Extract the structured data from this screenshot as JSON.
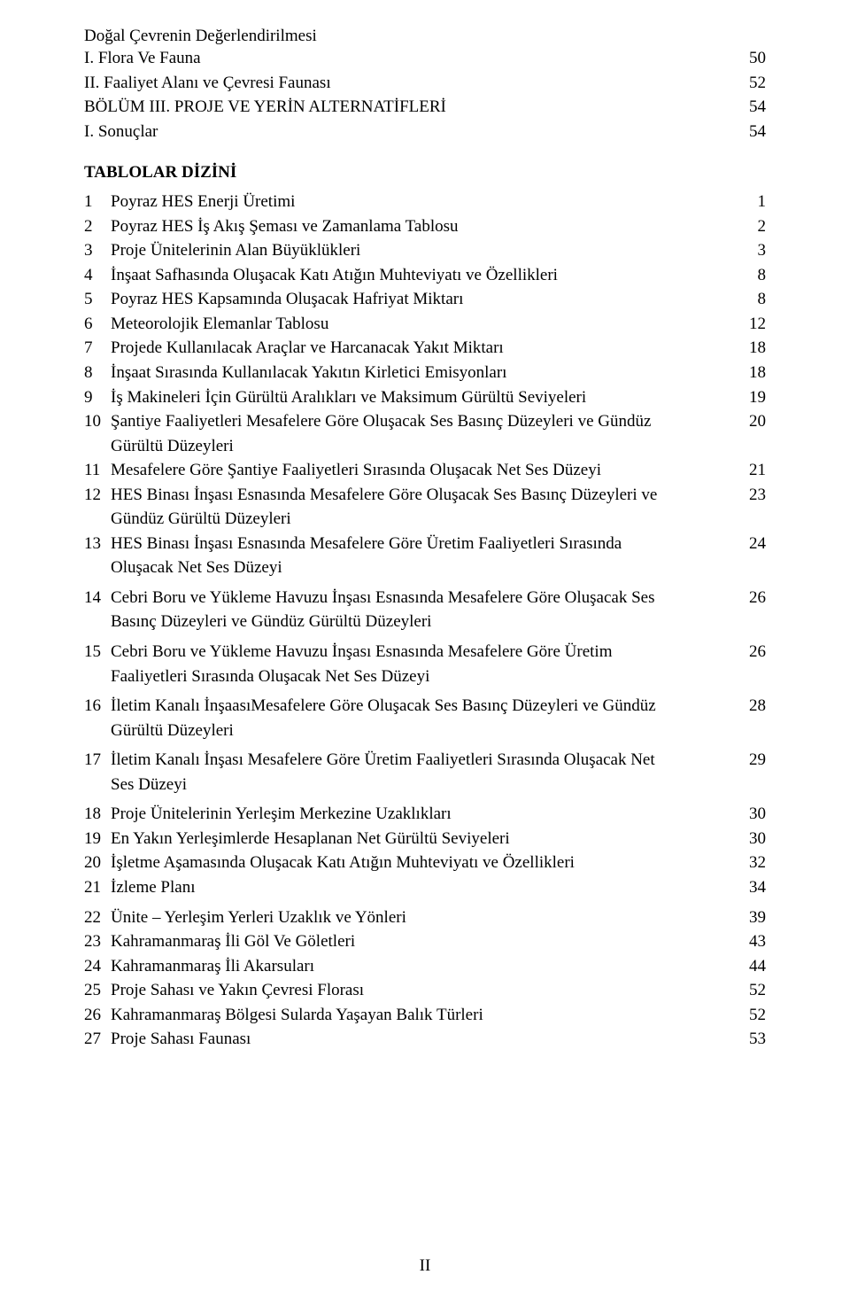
{
  "top": {
    "heading": "Doğal Çevrenin Değerlendirilmesi",
    "items": [
      {
        "label": "I. Flora Ve Fauna",
        "page": "50"
      },
      {
        "label": "II. Faaliyet Alanı ve Çevresi Faunası",
        "page": "52"
      }
    ],
    "bolum": {
      "label": "BÖLÜM III. PROJE VE YERİN ALTERNATİFLERİ",
      "page": "54"
    },
    "sonuclar": {
      "label": "I. Sonuçlar",
      "page": "54"
    }
  },
  "tablesHeading": "TABLOLAR DİZİNİ",
  "tables": [
    {
      "idx": "1",
      "desc": [
        "Poyraz HES Enerji Üretimi"
      ],
      "page": "1"
    },
    {
      "idx": "2",
      "desc": [
        "Poyraz HES İş Akış Şeması ve Zamanlama Tablosu"
      ],
      "page": "2"
    },
    {
      "idx": "3",
      "desc": [
        "Proje Ünitelerinin Alan Büyüklükleri"
      ],
      "page": "3"
    },
    {
      "idx": "4",
      "desc": [
        "İnşaat Safhasında Oluşacak Katı Atığın Muhteviyatı ve Özellikleri"
      ],
      "page": "8"
    },
    {
      "idx": "5",
      "desc": [
        "Poyraz HES Kapsamında Oluşacak Hafriyat Miktarı"
      ],
      "page": "8"
    },
    {
      "idx": "6",
      "desc": [
        "Meteorolojik Elemanlar Tablosu"
      ],
      "page": "12"
    },
    {
      "idx": "7",
      "desc": [
        "Projede Kullanılacak Araçlar ve Harcanacak Yakıt Miktarı"
      ],
      "page": "18"
    },
    {
      "idx": "8",
      "desc": [
        "İnşaat Sırasında Kullanılacak Yakıtın Kirletici Emisyonları"
      ],
      "page": "18"
    },
    {
      "idx": "9",
      "desc": [
        "İş Makineleri İçin Gürültü Aralıkları ve Maksimum Gürültü Seviyeleri"
      ],
      "page": "19"
    },
    {
      "idx": "10",
      "desc": [
        "Şantiye Faaliyetleri Mesafelere Göre Oluşacak Ses Basınç Düzeyleri ve Gündüz",
        "Gürültü Düzeyleri"
      ],
      "page": "20"
    },
    {
      "idx": "11",
      "desc": [
        "Mesafelere Göre Şantiye Faaliyetleri Sırasında Oluşacak Net Ses Düzeyi"
      ],
      "page": "21"
    },
    {
      "idx": "12",
      "desc": [
        "HES Binası İnşası Esnasında Mesafelere Göre Oluşacak Ses Basınç Düzeyleri ve",
        "Gündüz Gürültü Düzeyleri"
      ],
      "page": "23"
    },
    {
      "idx": "13",
      "desc": [
        "HES Binası İnşası Esnasında Mesafelere Göre Üretim Faaliyetleri Sırasında",
        "Oluşacak Net Ses Düzeyi"
      ],
      "page": "24"
    },
    {
      "idx": "14",
      "desc": [
        "Cebri Boru ve Yükleme Havuzu İnşası Esnasında Mesafelere Göre Oluşacak Ses",
        "Basınç Düzeyleri ve Gündüz Gürültü Düzeyleri"
      ],
      "page": "26"
    },
    {
      "idx": "15",
      "desc": [
        "Cebri Boru ve Yükleme Havuzu İnşası Esnasında Mesafelere Göre Üretim",
        "Faaliyetleri Sırasında Oluşacak Net Ses Düzeyi"
      ],
      "page": "26"
    },
    {
      "idx": "16",
      "desc": [
        "İletim Kanalı İnşaasıMesafelere Göre Oluşacak Ses Basınç Düzeyleri ve Gündüz",
        "Gürültü Düzeyleri"
      ],
      "page": "28"
    },
    {
      "idx": "17",
      "desc": [
        "İletim Kanalı İnşası Mesafelere Göre Üretim Faaliyetleri Sırasında Oluşacak Net",
        "Ses Düzeyi"
      ],
      "page": "29"
    },
    {
      "idx": "18",
      "desc": [
        "Proje Ünitelerinin Yerleşim Merkezine Uzaklıkları"
      ],
      "page": "30"
    },
    {
      "idx": "19",
      "desc": [
        "En Yakın Yerleşimlerde Hesaplanan Net Gürültü Seviyeleri"
      ],
      "page": "30"
    },
    {
      "idx": "20",
      "desc": [
        "İşletme Aşamasında Oluşacak Katı Atığın Muhteviyatı ve Özellikleri"
      ],
      "page": "32"
    },
    {
      "idx": "21",
      "desc": [
        "İzleme Planı"
      ],
      "page": "34"
    },
    {
      "idx": "22",
      "desc": [
        "Ünite – Yerleşim Yerleri Uzaklık ve Yönleri"
      ],
      "page": "39"
    },
    {
      "idx": "23",
      "desc": [
        "Kahramanmaraş İli Göl Ve Göletleri"
      ],
      "page": "43"
    },
    {
      "idx": "24",
      "desc": [
        "Kahramanmaraş İli Akarsuları"
      ],
      "page": "44"
    },
    {
      "idx": "25",
      "desc": [
        "Proje Sahası ve Yakın Çevresi Florası"
      ],
      "page": "52"
    },
    {
      "idx": "26",
      "desc": [
        "Kahramanmaraş Bölgesi Sularda Yaşayan Balık Türleri"
      ],
      "page": "52"
    },
    {
      "idx": "27",
      "desc": [
        "Proje Sahası Faunası"
      ],
      "page": "53"
    }
  ],
  "pageNumber": "II"
}
